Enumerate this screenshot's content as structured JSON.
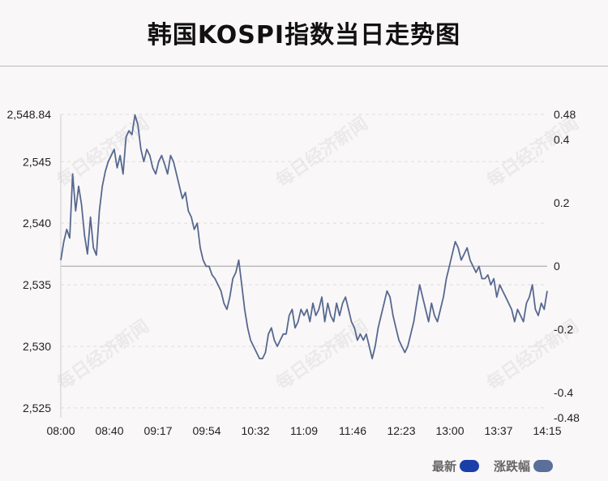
{
  "title": "韩国KOSPI指数当日走势图",
  "watermark": "每日经济新闻",
  "legend": [
    {
      "label": "最新",
      "color": "#1a3fa8"
    },
    {
      "label": "涨跌幅",
      "color": "#5a6f9a"
    }
  ],
  "colors": {
    "line": "#56698f",
    "grid": "#dddddd",
    "zero": "#bbbbbb"
  },
  "chart_data": {
    "type": "line",
    "x_ticks": [
      "08:00",
      "08:40",
      "09:17",
      "09:54",
      "10:32",
      "11:09",
      "11:46",
      "12:23",
      "13:00",
      "13:37",
      "14:15"
    ],
    "y_left_ticks": [
      "2,548.84",
      "2,545",
      "2,540",
      "2,535",
      "2,530",
      "2,525"
    ],
    "y_right_ticks": [
      "0.48",
      "0.4",
      "0.2",
      "0",
      "-0.2",
      "-0.4",
      "-0.48"
    ],
    "ylim_left": [
      2524.2,
      2548.84
    ],
    "ylim_right": [
      -0.48,
      0.48
    ],
    "zero_level": 2536.5,
    "grid": true,
    "series": [
      {
        "values": [
          2537.0,
          2538.5,
          2539.5,
          2538.8,
          2544.0,
          2541.0,
          2543.0,
          2541.5,
          2539.0,
          2537.5,
          2540.5,
          2538.0,
          2537.4,
          2541.0,
          2543.0,
          2544.2,
          2545.0,
          2545.5,
          2546.0,
          2544.5,
          2545.5,
          2544.0,
          2547.0,
          2547.5,
          2547.2,
          2548.8,
          2548.0,
          2546.0,
          2545.0,
          2546.0,
          2545.5,
          2544.5,
          2544.0,
          2545.0,
          2545.5,
          2544.8,
          2544.0,
          2545.5,
          2545.0,
          2544.0,
          2543.0,
          2542.0,
          2542.5,
          2541.0,
          2540.5,
          2539.5,
          2540.0,
          2538.0,
          2537.0,
          2536.5,
          2536.5,
          2535.8,
          2535.5,
          2535.0,
          2534.5,
          2533.5,
          2533.0,
          2534.0,
          2535.5,
          2536.0,
          2537.0,
          2535.0,
          2533.0,
          2531.5,
          2530.5,
          2530.0,
          2529.5,
          2529.0,
          2529.0,
          2529.5,
          2531.0,
          2531.5,
          2530.5,
          2530.0,
          2530.5,
          2531.0,
          2531.0,
          2532.5,
          2533.0,
          2531.5,
          2532.0,
          2533.0,
          2532.5,
          2533.0,
          2532.0,
          2533.5,
          2532.5,
          2533.0,
          2534.0,
          2532.0,
          2533.5,
          2532.5,
          2532.0,
          2533.5,
          2532.5,
          2533.5,
          2534.0,
          2533.0,
          2532.0,
          2531.5,
          2530.5,
          2531.0,
          2530.5,
          2531.0,
          2530.0,
          2529.0,
          2530.0,
          2531.5,
          2532.5,
          2533.5,
          2534.5,
          2534.0,
          2532.5,
          2531.5,
          2530.5,
          2530.0,
          2529.5,
          2530.0,
          2531.0,
          2532.0,
          2533.5,
          2535.0,
          2534.0,
          2533.0,
          2532.0,
          2533.5,
          2532.5,
          2532.0,
          2533.0,
          2534.0,
          2535.5,
          2536.5,
          2537.5,
          2538.5,
          2538.0,
          2537.0,
          2537.5,
          2538.0,
          2537.0,
          2536.5,
          2536.0,
          2536.5,
          2535.5,
          2535.5,
          2535.8,
          2535.0,
          2535.5,
          2534.0,
          2535.0,
          2534.5,
          2534.0,
          2533.5,
          2533.0,
          2532.0,
          2533.0,
          2532.5,
          2532.0,
          2533.5,
          2534.0,
          2535.0,
          2533.0,
          2532.5,
          2533.5,
          2533.0,
          2534.5
        ]
      }
    ]
  }
}
